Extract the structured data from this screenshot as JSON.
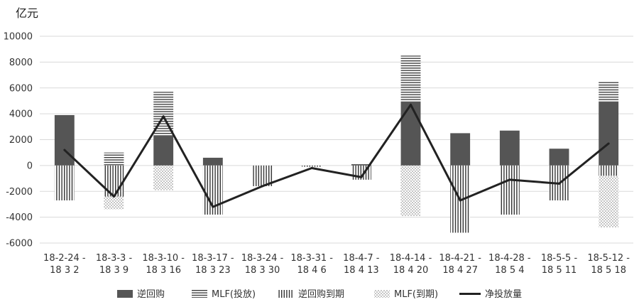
{
  "chart_data": {
    "type": "bar",
    "unit_label": "亿元",
    "categories": [
      [
        "18-2-24 -",
        "18 3 2"
      ],
      [
        "18-3-3 -",
        "18 3 9"
      ],
      [
        "18-3-10 -",
        "18 3 16"
      ],
      [
        "18-3-17 -",
        "18 3 23"
      ],
      [
        "18-3-24 -",
        "18 3 30"
      ],
      [
        "18-3-31 -",
        "18 4 6"
      ],
      [
        "18-4-7 -",
        "18 4 13"
      ],
      [
        "18-4-14 -",
        "18 4 20"
      ],
      [
        "18-4-21 -",
        "18 4 27"
      ],
      [
        "18-4-28 -",
        "18 5 4"
      ],
      [
        "18-5-5 -",
        "18 5 11"
      ],
      [
        "18-5-12 -",
        "18 5 18"
      ]
    ],
    "ylim": [
      -6000,
      10000
    ],
    "yticks": [
      -6000,
      -4000,
      -2000,
      0,
      2000,
      4000,
      6000,
      8000,
      10000
    ],
    "ytick_labels": [
      "-6000",
      "-4000",
      "-2000",
      "0",
      "2000",
      "4000",
      "6000",
      "8000",
      "10000"
    ],
    "grid": true,
    "legend_position": "bottom",
    "series": [
      {
        "name": "逆回购",
        "kind": "bar",
        "stack": "positive",
        "pattern": "solid",
        "color": "#555555",
        "values": [
          3900,
          0,
          2300,
          600,
          0,
          0,
          100,
          4900,
          2500,
          2700,
          1300,
          4900
        ]
      },
      {
        "name": "MLF(投放)",
        "kind": "bar",
        "stack": "positive",
        "pattern": "horizontal-lines",
        "color": "#333333",
        "values": [
          0,
          1000,
          3400,
          0,
          0,
          0,
          0,
          3600,
          0,
          0,
          0,
          1600
        ]
      },
      {
        "name": "逆回购到期",
        "kind": "bar",
        "stack": "negative",
        "pattern": "vertical-lines",
        "color": "#333333",
        "values": [
          -2700,
          -2400,
          0,
          -3800,
          -1600,
          -100,
          -1100,
          0,
          -5200,
          -3800,
          -2700,
          -800
        ]
      },
      {
        "name": "MLF(到期)",
        "kind": "bar",
        "stack": "negative",
        "pattern": "dots",
        "color": "#888888",
        "values": [
          0,
          -1000,
          -1900,
          0,
          0,
          0,
          0,
          -3900,
          0,
          0,
          0,
          -4000
        ]
      },
      {
        "name": "净投放量",
        "kind": "line",
        "color": "#222222",
        "values": [
          1200,
          -2400,
          3800,
          -3200,
          -1600,
          -200,
          -900,
          4700,
          -2700,
          -1100,
          -1400,
          1700
        ]
      }
    ]
  }
}
